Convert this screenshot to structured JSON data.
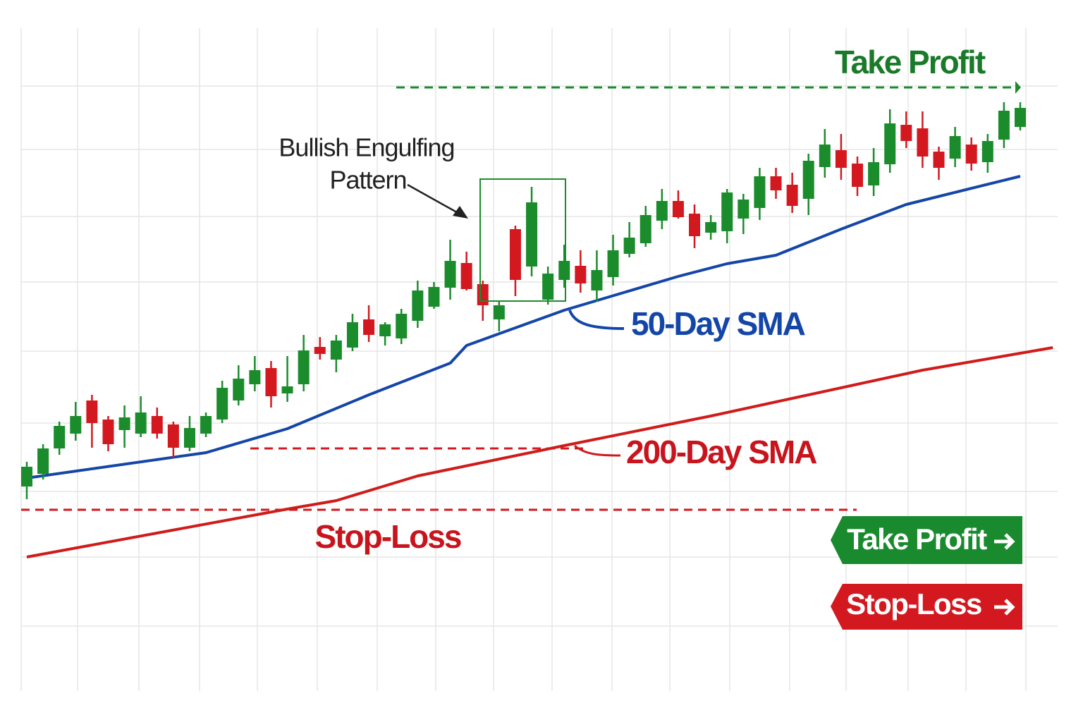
{
  "chart_data": {
    "type": "candlestick",
    "categories": [
      null,
      null,
      null,
      null,
      null,
      null,
      null,
      null,
      null,
      null,
      null,
      null,
      null,
      null,
      null,
      null,
      null,
      null,
      null,
      null,
      null,
      null,
      null,
      null,
      null,
      null,
      null,
      null,
      null,
      null,
      null,
      null,
      null,
      null,
      null,
      null,
      null,
      null,
      null,
      null,
      null,
      null,
      null,
      null,
      null,
      null,
      null,
      null,
      null,
      null,
      null,
      null,
      null,
      null,
      null,
      null,
      null,
      null,
      null,
      null,
      null,
      null
    ],
    "open": [
      31.0,
      32.8,
      36.4,
      38.5,
      43.2,
      40.5,
      39.0,
      38.5,
      41.0,
      39.8,
      36.5,
      38.5,
      40.5,
      43.2,
      45.5,
      47.8,
      44.2,
      45.5,
      50.8,
      49.0,
      50.7,
      54.7,
      52.3,
      52.0,
      54.5,
      56.5,
      59.2,
      62.7,
      59.7,
      54.7,
      67.5,
      62.2,
      57.5,
      60.3,
      62.3,
      58.8,
      60.7,
      64.0,
      65.5,
      68.7,
      71.5,
      69.7,
      67.0,
      67.2,
      69.0,
      70.5,
      75.0,
      73.8,
      71.8,
      76.3,
      78.7,
      76.8,
      73.7,
      76.7,
      82.3,
      81.8,
      78.5,
      77.5,
      79.5,
      77.0,
      80.2,
      82.0
    ],
    "high": [
      34.5,
      37.0,
      40.2,
      43.0,
      44.0,
      41.0,
      42.5,
      43.8,
      42.2,
      40.2,
      41.0,
      41.5,
      46.0,
      48.2,
      49.5,
      48.8,
      49.5,
      52.5,
      52.2,
      52.5,
      55.5,
      56.7,
      54.3,
      56.2,
      60.2,
      60.0,
      66.0,
      64.3,
      60.2,
      57.2,
      68.0,
      73.5,
      62.2,
      65.3,
      64.5,
      64.5,
      66.7,
      68.5,
      70.8,
      73.2,
      73.0,
      71.0,
      69.5,
      73.2,
      72.5,
      76.2,
      76.2,
      75.5,
      78.2,
      81.7,
      81.0,
      77.8,
      79.0,
      84.5,
      84.2,
      84.2,
      79.2,
      82.0,
      80.5,
      81.0,
      85.5,
      85.5
    ],
    "low": [
      29.2,
      32.0,
      35.5,
      37.5,
      36.5,
      36.0,
      36.5,
      38.0,
      37.8,
      35.0,
      36.0,
      38.0,
      40.0,
      42.5,
      44.5,
      42.2,
      43.0,
      44.5,
      49.0,
      47.2,
      50.2,
      51.5,
      51.0,
      51.2,
      53.5,
      56.2,
      57.5,
      58.8,
      54.5,
      53.0,
      58.0,
      60.8,
      56.8,
      59.2,
      58.5,
      57.2,
      59.5,
      63.5,
      65.0,
      67.5,
      69.0,
      64.8,
      66.0,
      65.5,
      66.8,
      68.8,
      71.8,
      69.8,
      69.5,
      74.8,
      74.5,
      72.2,
      72.2,
      75.5,
      79.0,
      76.2,
      74.5,
      76.3,
      75.8,
      75.5,
      79.0,
      81.5
    ],
    "close": [
      33.8,
      36.4,
      39.6,
      41.0,
      40.0,
      37.0,
      40.8,
      41.5,
      38.5,
      36.5,
      39.3,
      41.0,
      45.0,
      46.3,
      47.5,
      43.8,
      45.2,
      50.3,
      49.8,
      51.7,
      54.3,
      52.5,
      54.0,
      55.5,
      58.8,
      59.3,
      63.0,
      59.0,
      56.7,
      56.7,
      60.3,
      71.3,
      61.2,
      63.0,
      59.8,
      61.7,
      64.5,
      66.3,
      69.5,
      71.5,
      69.2,
      66.5,
      68.5,
      72.7,
      71.7,
      75.0,
      73.0,
      70.8,
      77.2,
      79.5,
      76.2,
      73.5,
      77.0,
      82.5,
      80.0,
      77.8,
      76.2,
      80.7,
      76.8,
      80.0,
      84.3,
      84.7
    ],
    "up_color": "#1a8c2b",
    "down_color": "#d3191f",
    "ylim": [
      2,
      96
    ],
    "grid": true,
    "series": [
      {
        "name": "50-Day SMA",
        "color": "#1446a8",
        "x": [
          0,
          11,
          16,
          21,
          26,
          27,
          33,
          40,
          43,
          46,
          50,
          54,
          61
        ],
        "values": [
          32.2,
          35.8,
          39.2,
          44.0,
          48.5,
          51.0,
          56.0,
          60.8,
          62.6,
          63.8,
          67.5,
          71.0,
          75.0
        ]
      },
      {
        "name": "200-Day SMA",
        "color": "#d01b1b",
        "x": [
          0,
          16,
          19,
          24,
          33,
          42,
          55,
          63
        ],
        "values": [
          21.0,
          27.8,
          29.0,
          32.5,
          36.8,
          41.0,
          47.5,
          50.7
        ]
      }
    ],
    "levels": [
      {
        "value": 87.6,
        "color": "#1a8c2b"
      },
      {
        "value": 36.4,
        "color": "#d3191f"
      },
      {
        "value": 27.7,
        "color": "#d3191f"
      }
    ],
    "annotations": [
      "Take Profit",
      "Stop-Loss"
    ],
    "pattern_label": [
      "Bullish Engulfing",
      "Pattern"
    ]
  },
  "buttons": [
    "Take Profit",
    "Stop-Loss"
  ]
}
